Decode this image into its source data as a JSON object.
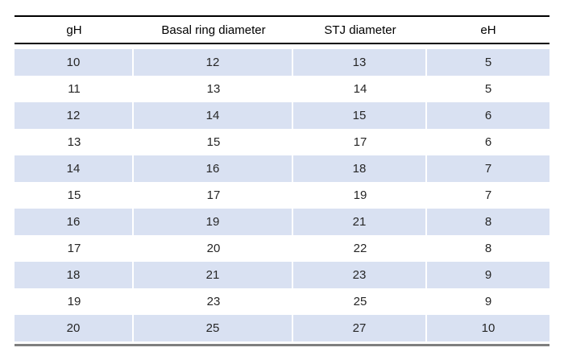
{
  "table": {
    "columns": [
      {
        "label": "gH"
      },
      {
        "label": "Basal ring diameter"
      },
      {
        "label": "STJ diameter"
      },
      {
        "label": "eH"
      }
    ],
    "rows": [
      [
        10,
        12,
        13,
        5
      ],
      [
        11,
        13,
        14,
        5
      ],
      [
        12,
        14,
        15,
        6
      ],
      [
        13,
        15,
        17,
        6
      ],
      [
        14,
        16,
        18,
        7
      ],
      [
        15,
        17,
        19,
        7
      ],
      [
        16,
        19,
        21,
        8
      ],
      [
        17,
        20,
        22,
        8
      ],
      [
        18,
        21,
        23,
        9
      ],
      [
        19,
        23,
        25,
        9
      ],
      [
        20,
        25,
        27,
        10
      ]
    ]
  },
  "colors": {
    "row_shade": "#d9e1f2",
    "rule_dark": "#000000",
    "rule_bottom_gray": "#7f7f7f",
    "text": "#262626"
  }
}
